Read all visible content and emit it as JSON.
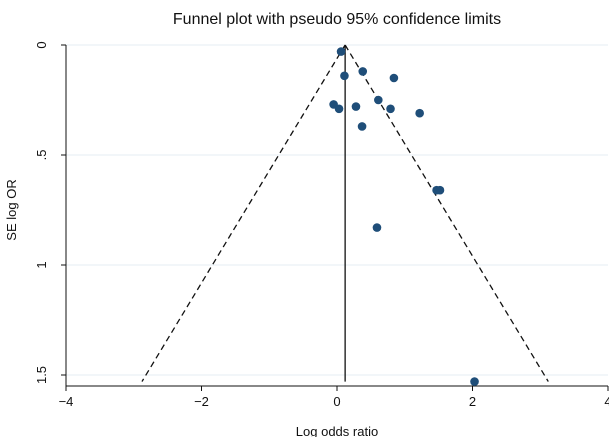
{
  "chart_data": {
    "type": "scatter",
    "title": "Funnel plot with pseudo 95% confidence limits",
    "xlabel": "Log odds ratio",
    "ylabel": "SE log OR",
    "xlim": [
      -4,
      4
    ],
    "ylim": [
      1.5,
      0
    ],
    "y_reversed": true,
    "grid": "horizontal",
    "x_ticks": [
      -4,
      -2,
      0,
      2,
      4
    ],
    "x_tick_labels": [
      "−4",
      "−2",
      "0",
      "2",
      "4"
    ],
    "y_ticks": [
      0,
      0.5,
      1,
      1.5
    ],
    "y_tick_labels": [
      "0",
      ".5",
      "1",
      "1.5"
    ],
    "pooled_estimate": 0.12,
    "confidence_level": 0.95,
    "funnel_se_max": 1.53,
    "marker_color": "#1f4e79",
    "points": [
      {
        "x": 0.06,
        "y": 0.03
      },
      {
        "x": 0.11,
        "y": 0.14
      },
      {
        "x": 0.38,
        "y": 0.12
      },
      {
        "x": 0.84,
        "y": 0.15
      },
      {
        "x": -0.05,
        "y": 0.27
      },
      {
        "x": 0.03,
        "y": 0.29
      },
      {
        "x": 0.28,
        "y": 0.28
      },
      {
        "x": 0.61,
        "y": 0.25
      },
      {
        "x": 0.79,
        "y": 0.29
      },
      {
        "x": 1.22,
        "y": 0.31
      },
      {
        "x": 0.37,
        "y": 0.37
      },
      {
        "x": 1.47,
        "y": 0.66
      },
      {
        "x": 1.52,
        "y": 0.66
      },
      {
        "x": 0.59,
        "y": 0.83
      },
      {
        "x": 2.03,
        "y": 1.53
      }
    ]
  }
}
